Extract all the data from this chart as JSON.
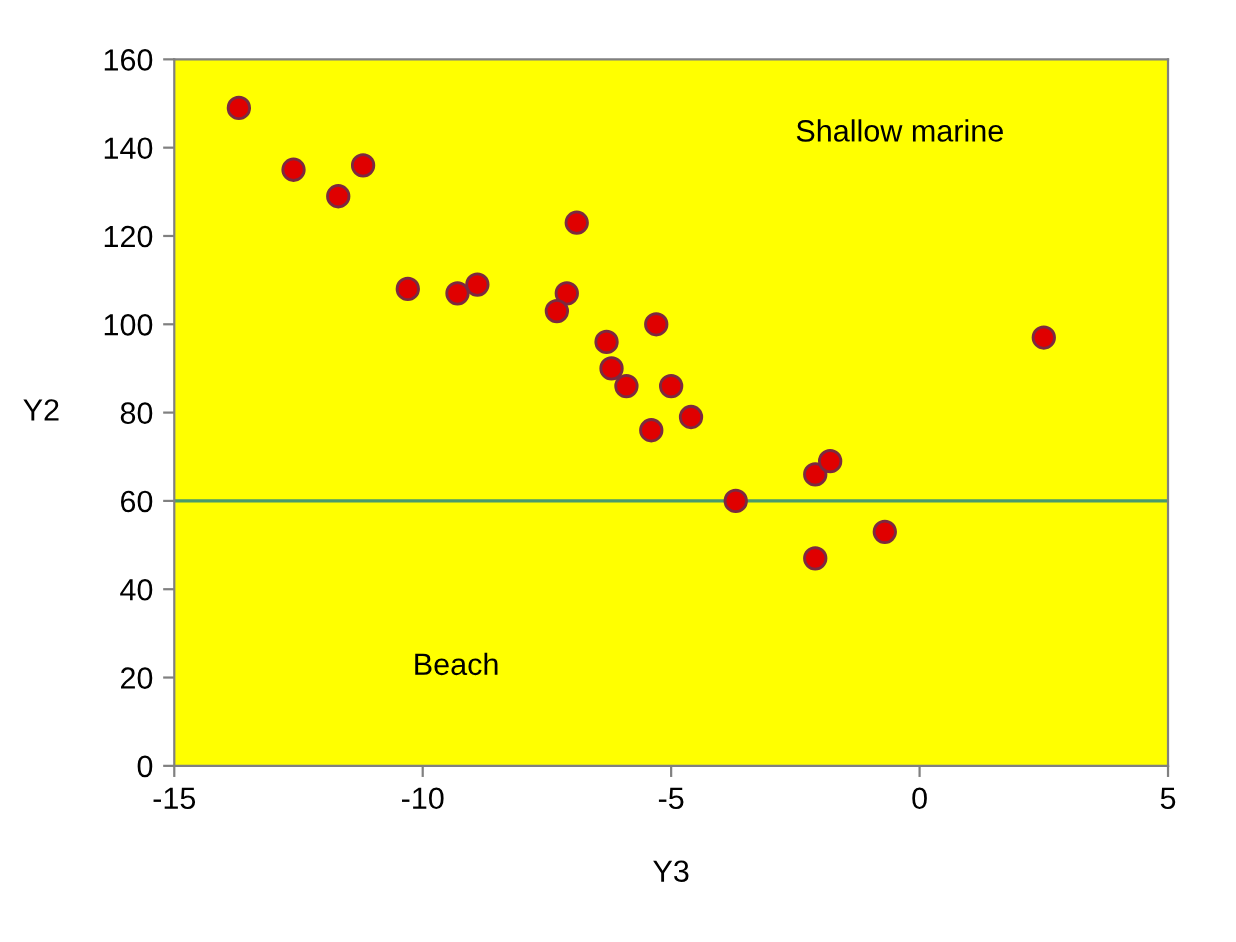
{
  "chart_data": {
    "type": "scatter",
    "xlabel": "Y3",
    "ylabel": "Y2",
    "x": [
      -13.7,
      -12.6,
      -11.2,
      -11.7,
      -6.9,
      -10.3,
      -9.3,
      -8.9,
      -7.1,
      -7.3,
      -5.3,
      -6.3,
      -6.2,
      -5.9,
      -5.0,
      -4.6,
      -5.4,
      -3.7,
      -2.1,
      -1.8,
      -0.7,
      -2.1,
      2.5
    ],
    "values": [
      149,
      135,
      136,
      129,
      123,
      108,
      107,
      109,
      107,
      103,
      100,
      96,
      90,
      86,
      86,
      79,
      76,
      60,
      66,
      69,
      53,
      47,
      97
    ],
    "color": "#e00000",
    "marker": "circle",
    "xlim": [
      -15,
      5
    ],
    "xticks": [
      -15,
      -10,
      -5,
      0,
      5
    ],
    "ylim": [
      0,
      160
    ],
    "yticks": [
      0,
      20,
      40,
      60,
      80,
      100,
      120,
      140,
      160
    ],
    "grid": false,
    "ref_lines": [
      {
        "axis": "y",
        "value": 60,
        "color": "#4a9a6a"
      }
    ],
    "annotations": [
      "Shallow marine",
      "Beach"
    ]
  }
}
